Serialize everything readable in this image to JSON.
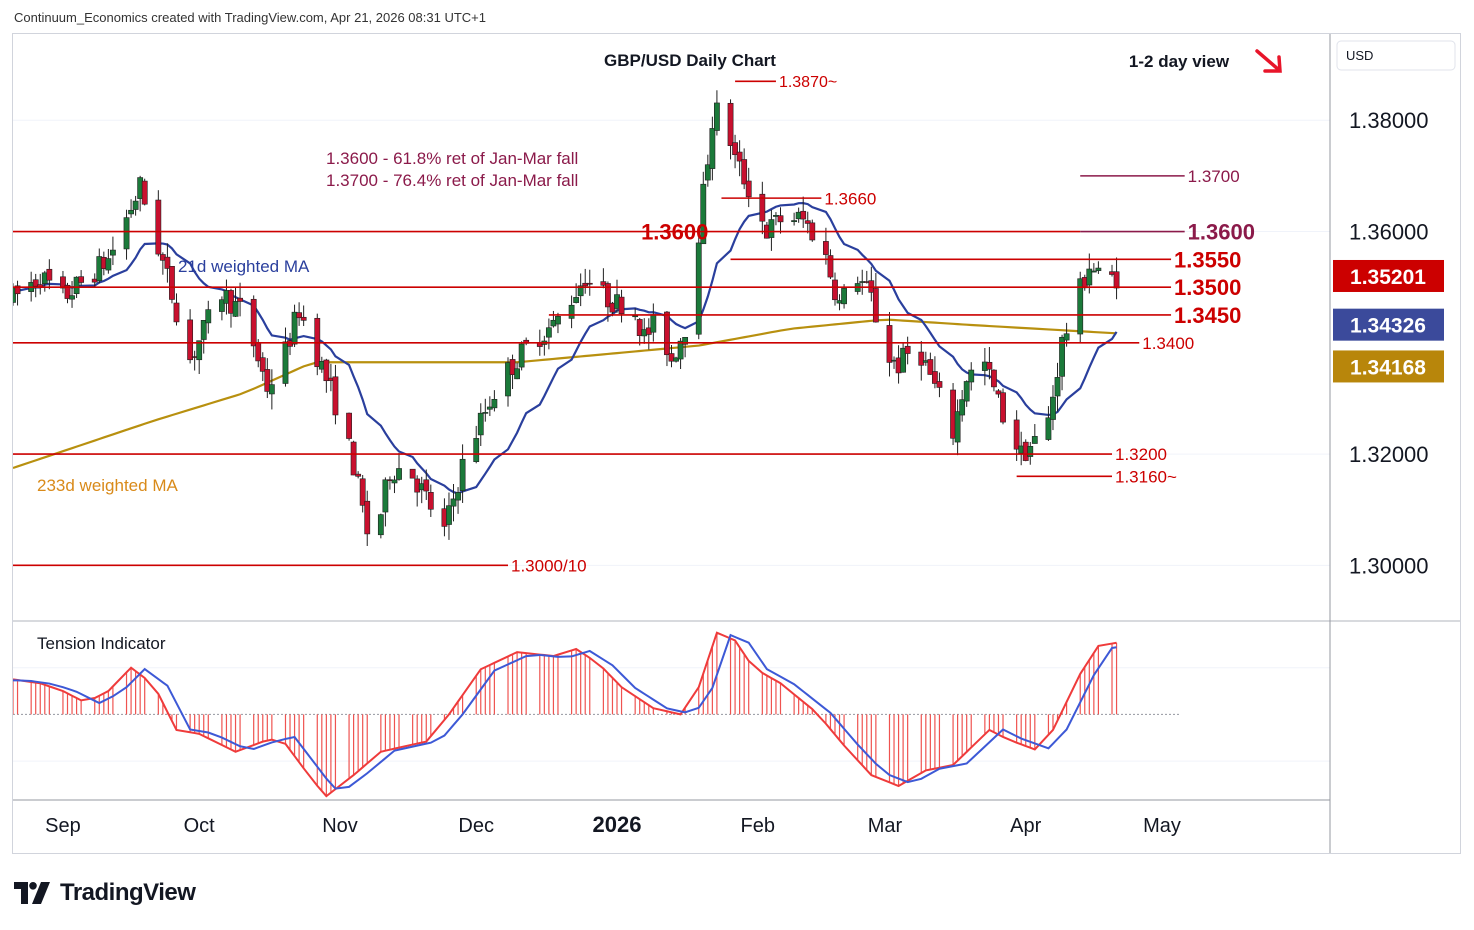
{
  "header": {
    "text": "Continuum_Economics created with TradingView.com, Apr 21, 2026 08:31 UTC+1"
  },
  "footer": {
    "brand": "TradingView",
    "logo_icon": "tradingview-logo-icon"
  },
  "chart_data": {
    "type": "candlestick",
    "title": "GBP/USD Daily Chart",
    "view": {
      "text": "1-2 day view",
      "arrow": "down-right-arrow-icon",
      "color": "#e8152a"
    },
    "currency": "USD",
    "y_ticks": [
      "1.38000",
      "1.36000",
      "1.32000",
      "1.30000"
    ],
    "y_tick_values": [
      1.38,
      1.36,
      1.32,
      1.3
    ],
    "x_ticks": [
      "Sep",
      "Oct",
      "Nov",
      "Dec",
      "2026",
      "Feb",
      "Mar",
      "Apr",
      "May"
    ],
    "x_tick_days": [
      0,
      30,
      61,
      91,
      122,
      153,
      181,
      212,
      242
    ],
    "x_range_days": [
      -11,
      279
    ],
    "ylim": [
      1.29,
      1.3955
    ],
    "price_badges": [
      {
        "label": "1.35201",
        "value": 1.35201,
        "color": "#cc0000"
      },
      {
        "label": "1.34326",
        "value": 1.34326,
        "color": "#3b4a9b"
      },
      {
        "label": "1.34168",
        "value": 1.34168,
        "color": "#b8860b"
      }
    ],
    "levels": [
      {
        "label": "1.3870~",
        "value": 1.387,
        "from_day": 148,
        "to_day": 157,
        "size": 16
      },
      {
        "label": "1.3700",
        "value": 1.37,
        "from_day": 224,
        "to_day": 247,
        "size": 17,
        "color": "#8b1a4a"
      },
      {
        "label": "1.3660",
        "value": 1.366,
        "from_day": 145,
        "to_day": 167,
        "size": 17
      },
      {
        "label": "1.3600",
        "value": 1.36,
        "from_day": -11,
        "to_day": 224,
        "size": 22,
        "label_side": "left",
        "label_day": 143
      },
      {
        "label": "1.3600",
        "value": 1.36,
        "from_day": 224,
        "to_day": 247,
        "size": 22,
        "color": "#8b1a4a"
      },
      {
        "label": "1.3550",
        "value": 1.355,
        "from_day": 147,
        "to_day": 244,
        "size": 22
      },
      {
        "label": "1.3500",
        "value": 1.35,
        "from_day": -11,
        "to_day": 244,
        "size": 22
      },
      {
        "label": "1.3450",
        "value": 1.345,
        "from_day": 107,
        "to_day": 244,
        "size": 22
      },
      {
        "label": "1.3400",
        "value": 1.34,
        "from_day": -11,
        "to_day": 237,
        "size": 17
      },
      {
        "label": "1.3200",
        "value": 1.32,
        "from_day": -11,
        "to_day": 231,
        "size": 17
      },
      {
        "label": "1.3160~",
        "value": 1.316,
        "from_day": 210,
        "to_day": 231,
        "size": 17
      },
      {
        "label": "1.3000/10",
        "value": 1.3,
        "from_day": -11,
        "to_day": 98,
        "size": 17
      }
    ],
    "annotations": [
      "1.3600 - 61.8% ret of Jan-Mar fall",
      "1.3700 - 76.4% ret of Jan-Mar fall"
    ],
    "ma_labels": [
      {
        "label": "21d weighted MA",
        "color": "#2a3f9d"
      },
      {
        "label": "233d weighted MA",
        "color": "#d98a19"
      }
    ],
    "anchors": [
      [
        -11,
        1.348
      ],
      [
        -5,
        1.352
      ],
      [
        0,
        1.348
      ],
      [
        10,
        1.355
      ],
      [
        17,
        1.368
      ],
      [
        20,
        1.36
      ],
      [
        25,
        1.346
      ],
      [
        28,
        1.337
      ],
      [
        35,
        1.349
      ],
      [
        40,
        1.345
      ],
      [
        45,
        1.332
      ],
      [
        48,
        1.336
      ],
      [
        52,
        1.346
      ],
      [
        55,
        1.34
      ],
      [
        61,
        1.327
      ],
      [
        64,
        1.318
      ],
      [
        68,
        1.302
      ],
      [
        72,
        1.317
      ],
      [
        76,
        1.318
      ],
      [
        80,
        1.312
      ],
      [
        84,
        1.306
      ],
      [
        88,
        1.318
      ],
      [
        92,
        1.326
      ],
      [
        96,
        1.333
      ],
      [
        100,
        1.337
      ],
      [
        104,
        1.341
      ],
      [
        108,
        1.343
      ],
      [
        112,
        1.348
      ],
      [
        115,
        1.352
      ],
      [
        118,
        1.349
      ],
      [
        122,
        1.347
      ],
      [
        125,
        1.348
      ],
      [
        128,
        1.341
      ],
      [
        131,
        1.344
      ],
      [
        134,
        1.337
      ],
      [
        138,
        1.345
      ],
      [
        140,
        1.36
      ],
      [
        143,
        1.38
      ],
      [
        145,
        1.383
      ],
      [
        148,
        1.373
      ],
      [
        152,
        1.366
      ],
      [
        155,
        1.36
      ],
      [
        159,
        1.363
      ],
      [
        163,
        1.362
      ],
      [
        167,
        1.358
      ],
      [
        171,
        1.347
      ],
      [
        175,
        1.352
      ],
      [
        178,
        1.348
      ],
      [
        181,
        1.338
      ],
      [
        184,
        1.336
      ],
      [
        188,
        1.34
      ],
      [
        193,
        1.33
      ],
      [
        196,
        1.324
      ],
      [
        199,
        1.334
      ],
      [
        203,
        1.336
      ],
      [
        207,
        1.327
      ],
      [
        211,
        1.32
      ],
      [
        215,
        1.323
      ],
      [
        217,
        1.326
      ],
      [
        220,
        1.34
      ],
      [
        223,
        1.347
      ],
      [
        226,
        1.354
      ],
      [
        229,
        1.351
      ],
      [
        232,
        1.352
      ]
    ],
    "last_day": 232,
    "tension": {
      "title": "Tension Indicator",
      "ylim": [
        -1.1,
        1.2
      ],
      "anchors": [
        [
          -11,
          0.45
        ],
        [
          -5,
          0.4
        ],
        [
          0,
          0.3
        ],
        [
          5,
          0.15
        ],
        [
          10,
          0.3
        ],
        [
          15,
          0.6
        ],
        [
          20,
          0.38
        ],
        [
          25,
          -0.2
        ],
        [
          30,
          -0.25
        ],
        [
          38,
          -0.48
        ],
        [
          44,
          -0.35
        ],
        [
          48,
          -0.3
        ],
        [
          55,
          -0.85
        ],
        [
          58,
          -1.05
        ],
        [
          64,
          -0.78
        ],
        [
          70,
          -0.48
        ],
        [
          76,
          -0.4
        ],
        [
          80,
          -0.35
        ],
        [
          85,
          0.0
        ],
        [
          92,
          0.58
        ],
        [
          100,
          0.8
        ],
        [
          108,
          0.75
        ],
        [
          113,
          0.84
        ],
        [
          118,
          0.65
        ],
        [
          123,
          0.35
        ],
        [
          130,
          0.08
        ],
        [
          136,
          0.0
        ],
        [
          140,
          0.35
        ],
        [
          144,
          1.05
        ],
        [
          148,
          0.95
        ],
        [
          152,
          0.6
        ],
        [
          158,
          0.4
        ],
        [
          166,
          0.02
        ],
        [
          172,
          -0.4
        ],
        [
          178,
          -0.78
        ],
        [
          184,
          -0.92
        ],
        [
          190,
          -0.72
        ],
        [
          196,
          -0.65
        ],
        [
          204,
          -0.2
        ],
        [
          208,
          -0.32
        ],
        [
          214,
          -0.45
        ],
        [
          218,
          -0.2
        ],
        [
          224,
          0.52
        ],
        [
          228,
          0.88
        ],
        [
          232,
          0.92
        ]
      ]
    }
  }
}
